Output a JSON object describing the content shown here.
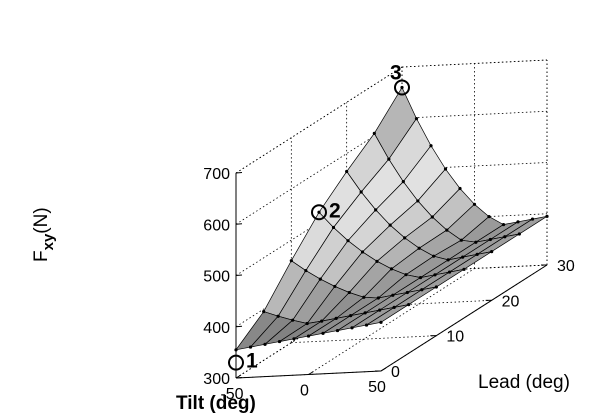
{
  "chart_data": {
    "type": "surface",
    "title": "",
    "xlabel": "Tilt (deg)",
    "ylabel": "Lead (deg)",
    "zlabel": {
      "main": "F",
      "sub": "xy",
      "unit": "(N)"
    },
    "xlim": [
      -50,
      50
    ],
    "ylim": [
      0,
      30
    ],
    "zlim": [
      300,
      700
    ],
    "x_ticks": [
      "-50",
      "0",
      "50"
    ],
    "y_ticks": [
      "0",
      "10",
      "20",
      "30"
    ],
    "z_ticks": [
      "300",
      "400",
      "500",
      "600",
      "700"
    ],
    "grid": true,
    "colormap": "gray",
    "surface": {
      "tilt": [
        -50,
        -40,
        -30,
        -20,
        -10,
        0,
        10,
        20,
        30,
        40,
        50
      ],
      "lead": [
        0,
        5,
        10,
        15,
        20,
        25,
        30
      ],
      "base_at_lead": [
        330,
        395,
        460,
        520,
        565,
        605,
        660
      ],
      "tilt_drop": 300,
      "tilt_curve": 2.2
    },
    "markers": [
      {
        "label": "1",
        "tilt": -50,
        "lead": 0,
        "fxy": 330
      },
      {
        "label": "2",
        "tilt": -50,
        "lead": 15,
        "fxy": 520
      },
      {
        "label": "3",
        "tilt": -50,
        "lead": 30,
        "fxy": 660
      }
    ]
  }
}
